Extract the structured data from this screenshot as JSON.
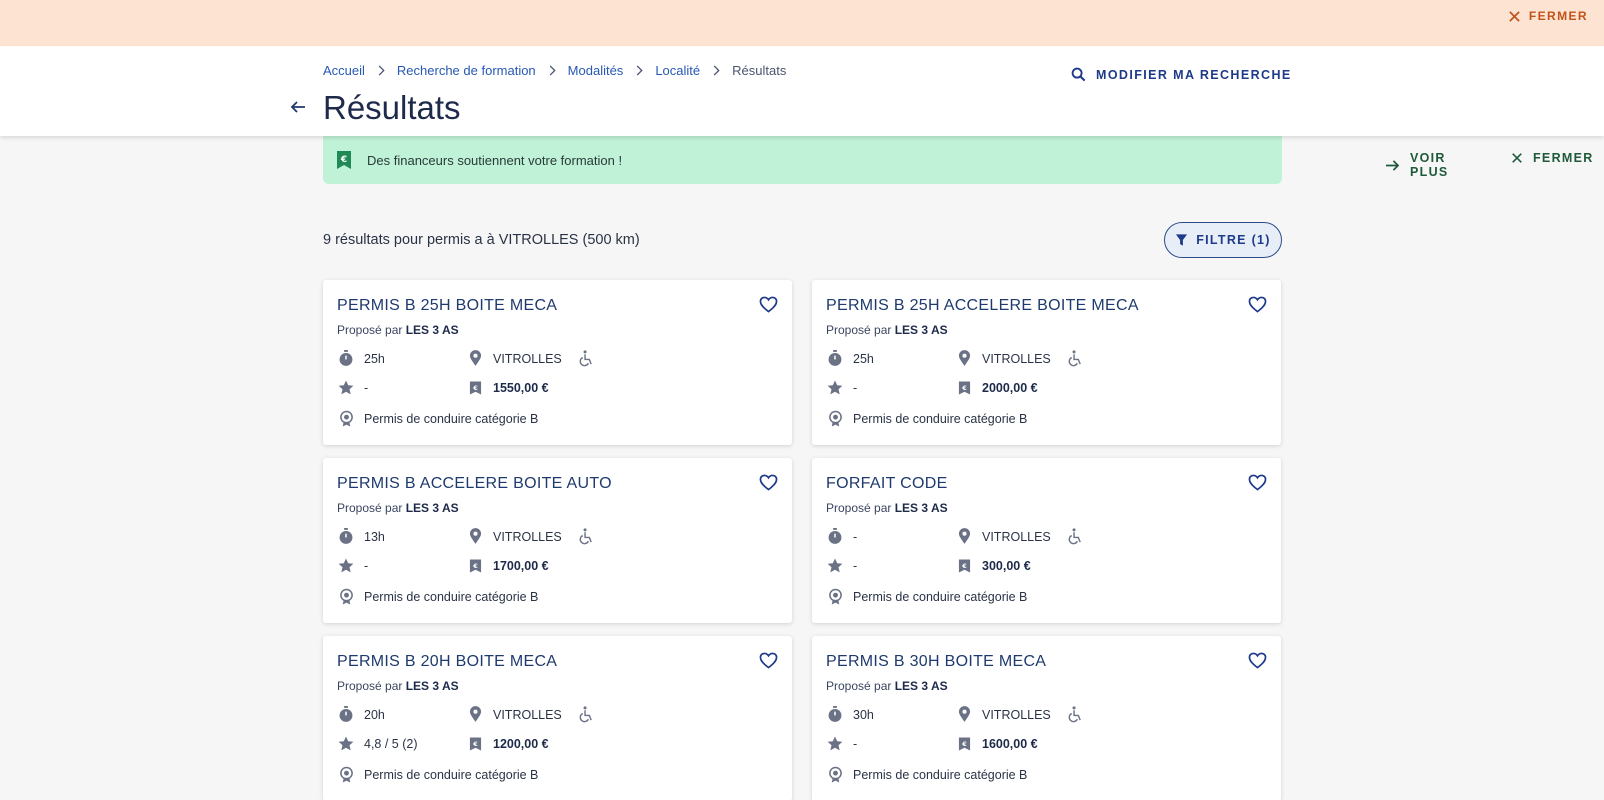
{
  "topbar": {
    "close_label": "FERMER"
  },
  "breadcrumb": {
    "items": [
      "Accueil",
      "Recherche de formation",
      "Modalités",
      "Localité"
    ],
    "current": "Résultats"
  },
  "header": {
    "title": "Résultats",
    "modify_label": "MODIFIER MA RECHERCHE"
  },
  "banner": {
    "text": "Des financeurs soutiennent votre formation !",
    "more_label": "VOIR PLUS",
    "close_label": "FERMER"
  },
  "results": {
    "count_text": "9 résultats pour permis a à VITROLLES (500 km)",
    "filter_label": "FILTRE (1)"
  },
  "cards": [
    {
      "title": "PERMIS B 25H BOITE MECA",
      "provider_prefix": "Proposé par",
      "provider": "LES 3 AS",
      "duration": "25h",
      "location": "VITROLLES",
      "rating": "-",
      "price": "1550,00 €",
      "certification": "Permis de conduire catégorie B"
    },
    {
      "title": "PERMIS B 25H ACCELERE BOITE MECA",
      "provider_prefix": "Proposé par",
      "provider": "LES 3 AS",
      "duration": "25h",
      "location": "VITROLLES",
      "rating": "-",
      "price": "2000,00 €",
      "certification": "Permis de conduire catégorie B"
    },
    {
      "title": "PERMIS B ACCELERE BOITE AUTO",
      "provider_prefix": "Proposé par",
      "provider": "LES 3 AS",
      "duration": "13h",
      "location": "VITROLLES",
      "rating": "-",
      "price": "1700,00 €",
      "certification": "Permis de conduire catégorie B"
    },
    {
      "title": "FORFAIT CODE",
      "provider_prefix": "Proposé par",
      "provider": "LES 3 AS",
      "duration": "-",
      "location": "VITROLLES",
      "rating": "-",
      "price": "300,00 €",
      "certification": "Permis de conduire catégorie B"
    },
    {
      "title": "PERMIS B 20H BOITE MECA",
      "provider_prefix": "Proposé par",
      "provider": "LES 3 AS",
      "duration": "20h",
      "location": "VITROLLES",
      "rating": "4,8 / 5 (2)",
      "price": "1200,00 €",
      "certification": "Permis de conduire catégorie B"
    },
    {
      "title": "PERMIS B 30H BOITE MECA",
      "provider_prefix": "Proposé par",
      "provider": "LES 3 AS",
      "duration": "30h",
      "location": "VITROLLES",
      "rating": "-",
      "price": "1600,00 €",
      "certification": "Permis de conduire catégorie B"
    }
  ],
  "icons": {
    "close": "close-icon",
    "search": "search-icon",
    "back": "arrow-left-icon",
    "euro_doc": "funding-icon",
    "arrow_right": "arrow-right-icon",
    "filter": "filter-icon",
    "heart": "heart-icon",
    "timer": "timer-icon",
    "location": "location-pin-icon",
    "accessibility": "wheelchair-icon",
    "star": "star-icon",
    "price": "price-tag-icon",
    "certification": "certification-icon"
  },
  "colors": {
    "topbar_bg": "#fde3d2",
    "topbar_accent": "#c0531a",
    "banner_bg": "#bff2d6",
    "primary": "#1e3a8a",
    "link": "#2758b4",
    "page_bg": "#f6f6f6"
  }
}
